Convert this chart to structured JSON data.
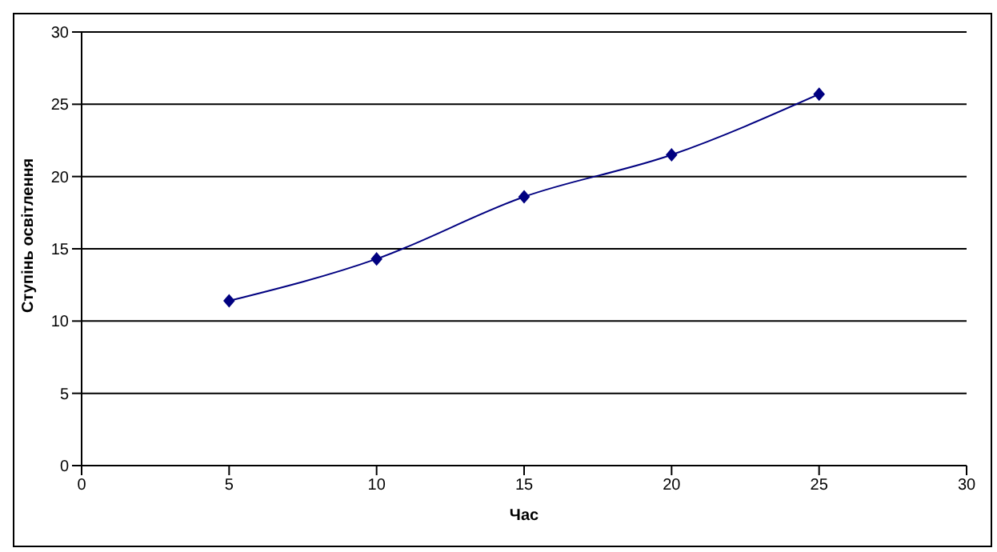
{
  "chart_data": {
    "type": "line",
    "xlabel": "Час",
    "ylabel": "Ступінь освітлення",
    "x": [
      5,
      10,
      15,
      20,
      25
    ],
    "series": [
      {
        "color": "#000080",
        "values": [
          11.4,
          14.3,
          18.6,
          21.5,
          25.7
        ]
      }
    ],
    "xlim": [
      0,
      30
    ],
    "xticks": [
      0,
      5,
      10,
      15,
      20,
      25,
      30
    ],
    "ylim": [
      0,
      30
    ],
    "yticks": [
      0,
      5,
      10,
      15,
      20,
      25,
      30
    ],
    "grid": "y",
    "marker": "diamond",
    "line_style": "solid",
    "legend": false
  }
}
